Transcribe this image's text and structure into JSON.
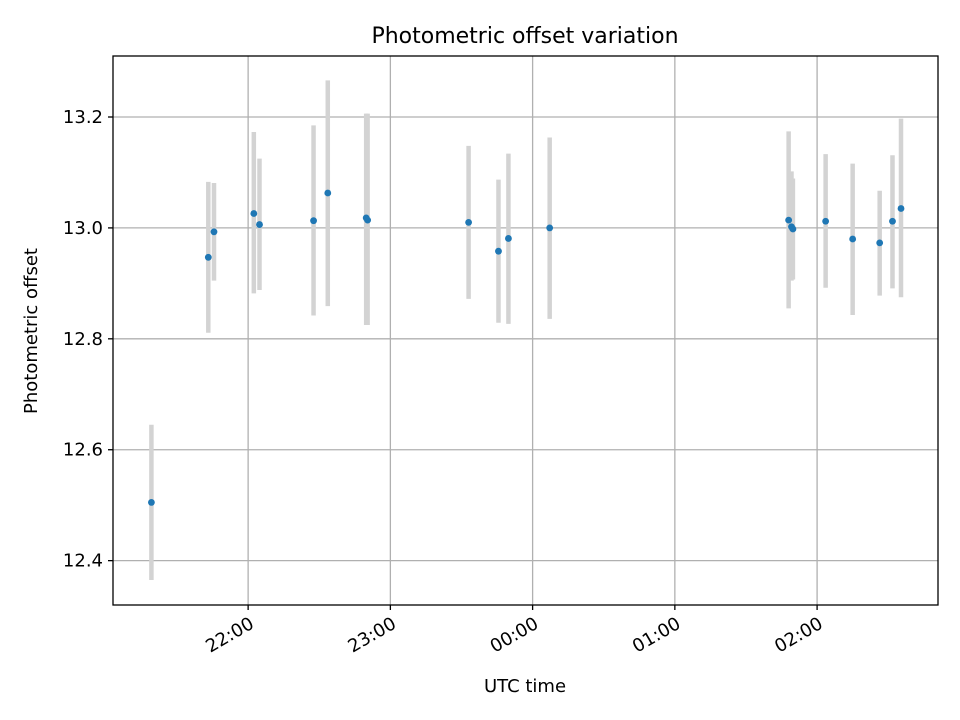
{
  "chart_data": {
    "type": "scatter",
    "title": "Photometric offset variation",
    "xlabel": "UTC time",
    "ylabel": "Photometric offset",
    "x_unit": "UTC clock time, hours past 00:00 of the first evening; values of 24 and above fall after midnight",
    "xlim": [
      21.05,
      26.85
    ],
    "ylim": [
      12.32,
      13.31
    ],
    "x_ticks": [
      {
        "value": 22,
        "label": "22:00"
      },
      {
        "value": 23,
        "label": "23:00"
      },
      {
        "value": 24,
        "label": "00:00"
      },
      {
        "value": 25,
        "label": "01:00"
      },
      {
        "value": 26,
        "label": "02:00"
      }
    ],
    "y_ticks": [
      {
        "value": 12.4,
        "label": "12.4"
      },
      {
        "value": 12.6,
        "label": "12.6"
      },
      {
        "value": 12.8,
        "label": "12.8"
      },
      {
        "value": 13.0,
        "label": "13.0"
      },
      {
        "value": 13.2,
        "label": "13.2"
      }
    ],
    "grid": true,
    "marker_color": "#1f77b4",
    "errorbar_color": "#d3d3d3",
    "points": [
      {
        "x": 21.32,
        "y": 12.505,
        "ylo": 12.365,
        "yhi": 12.645
      },
      {
        "x": 21.72,
        "y": 12.947,
        "ylo": 12.811,
        "yhi": 13.083
      },
      {
        "x": 21.76,
        "y": 12.993,
        "ylo": 12.905,
        "yhi": 13.081
      },
      {
        "x": 22.04,
        "y": 13.026,
        "ylo": 12.882,
        "yhi": 13.173
      },
      {
        "x": 22.08,
        "y": 13.006,
        "ylo": 12.888,
        "yhi": 13.125
      },
      {
        "x": 22.46,
        "y": 13.013,
        "ylo": 12.842,
        "yhi": 13.185
      },
      {
        "x": 22.56,
        "y": 13.063,
        "ylo": 12.859,
        "yhi": 13.266
      },
      {
        "x": 22.83,
        "y": 13.018,
        "ylo": 12.825,
        "yhi": 13.206
      },
      {
        "x": 22.84,
        "y": 13.014,
        "ylo": 12.825,
        "yhi": 13.206
      },
      {
        "x": 23.55,
        "y": 13.01,
        "ylo": 12.872,
        "yhi": 13.148
      },
      {
        "x": 23.76,
        "y": 12.958,
        "ylo": 12.829,
        "yhi": 13.087
      },
      {
        "x": 23.83,
        "y": 12.981,
        "ylo": 12.827,
        "yhi": 13.134
      },
      {
        "x": 24.12,
        "y": 13.0,
        "ylo": 12.836,
        "yhi": 13.163
      },
      {
        "x": 25.8,
        "y": 13.014,
        "ylo": 12.855,
        "yhi": 13.174
      },
      {
        "x": 25.82,
        "y": 13.002,
        "ylo": 12.905,
        "yhi": 13.102
      },
      {
        "x": 25.83,
        "y": 12.998,
        "ylo": 12.907,
        "yhi": 13.089
      },
      {
        "x": 26.06,
        "y": 13.012,
        "ylo": 12.892,
        "yhi": 13.133
      },
      {
        "x": 26.25,
        "y": 12.98,
        "ylo": 12.843,
        "yhi": 13.116
      },
      {
        "x": 26.44,
        "y": 12.973,
        "ylo": 12.878,
        "yhi": 13.067
      },
      {
        "x": 26.53,
        "y": 13.012,
        "ylo": 12.891,
        "yhi": 13.131
      },
      {
        "x": 26.59,
        "y": 13.035,
        "ylo": 12.875,
        "yhi": 13.197
      }
    ]
  }
}
